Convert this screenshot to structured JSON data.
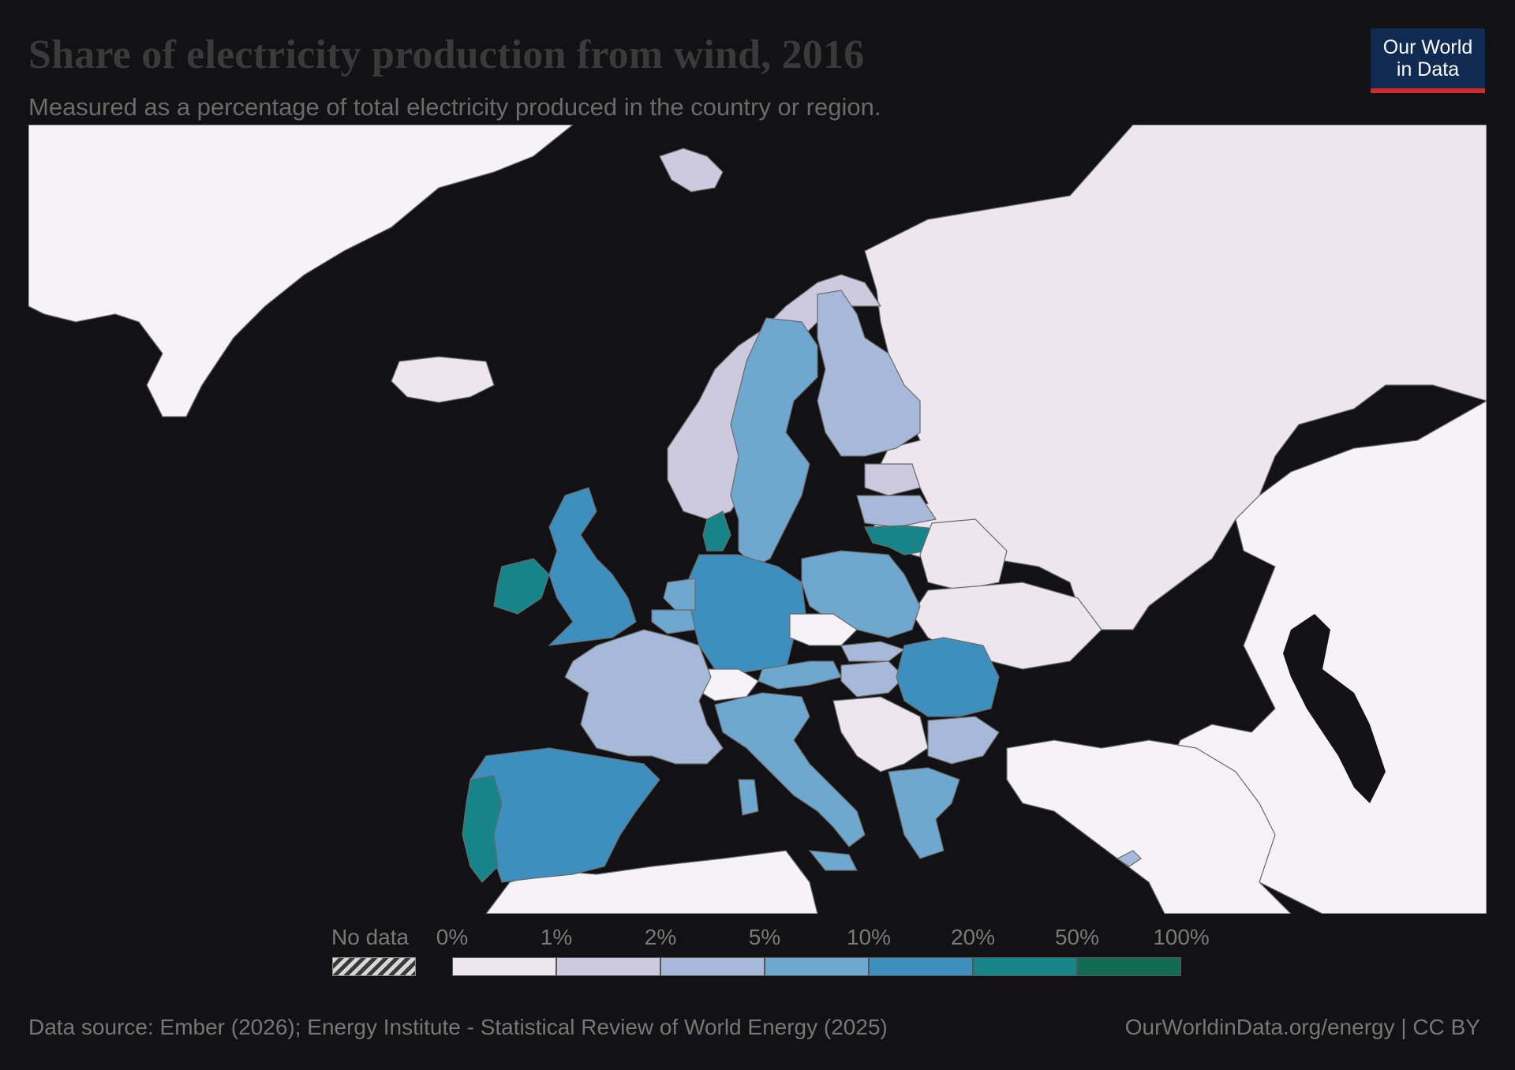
{
  "title": "Share of electricity production from wind, 2016",
  "subtitle": "Measured as a percentage of total electricity produced in the country or region.",
  "logo": {
    "line1": "Our World",
    "line2": "in Data"
  },
  "legend": {
    "no_data_label": "No data",
    "bins": [
      {
        "label": "0%",
        "color": "#ece6ef"
      },
      {
        "label": "1%",
        "color": "#cdcae0"
      },
      {
        "label": "2%",
        "color": "#a7b9d8"
      },
      {
        "label": "5%",
        "color": "#6ea7cf"
      },
      {
        "label": "10%",
        "color": "#3d8fbf"
      },
      {
        "label": "20%",
        "color": "#15858a"
      },
      {
        "label": "50%",
        "color": "#126a55"
      }
    ],
    "end_label": "100%"
  },
  "colors": {
    "background": "#121114",
    "land_no_bin": "#f5f3f7",
    "russia": "#ede6ee",
    "border": "#8a8a8a",
    "water": "#121114"
  },
  "footer": {
    "source": "Data source: Ember (2026); Energy Institute - Statistical Review of World Energy (2025)",
    "credit": "OurWorldinData.org/energy | CC BY"
  }
}
